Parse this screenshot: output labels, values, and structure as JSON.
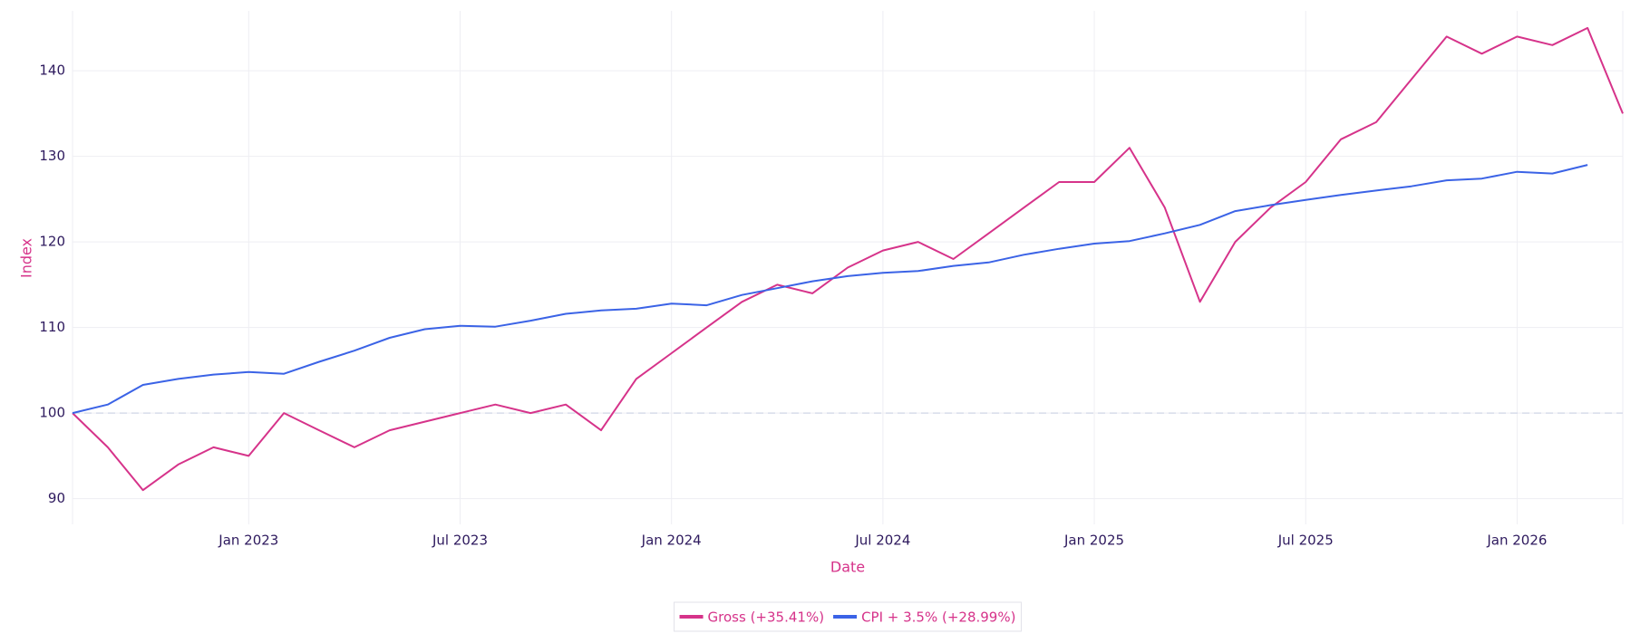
{
  "chart_data": {
    "type": "line",
    "xlabel": "Date",
    "ylabel": "Index",
    "x": [
      "2022-08",
      "2022-09",
      "2022-10",
      "2022-11",
      "2022-12",
      "2023-01",
      "2023-02",
      "2023-03",
      "2023-04",
      "2023-05",
      "2023-06",
      "2023-07",
      "2023-08",
      "2023-09",
      "2023-10",
      "2023-11",
      "2023-12",
      "2024-01",
      "2024-02",
      "2024-03",
      "2024-04",
      "2024-05",
      "2024-06",
      "2024-07",
      "2024-08",
      "2024-09",
      "2024-10",
      "2024-11",
      "2024-12",
      "2025-01",
      "2025-02",
      "2025-03",
      "2025-04",
      "2025-05",
      "2025-06",
      "2025-07",
      "2025-08",
      "2025-09",
      "2025-10",
      "2025-11",
      "2025-12",
      "2026-01",
      "2026-02",
      "2026-03",
      "2026-04"
    ],
    "series": [
      {
        "name": "Gross (+35.41%)",
        "color": "#d6338a",
        "values": [
          100,
          96,
          91,
          94,
          96,
          95,
          100,
          98,
          96,
          98,
          99,
          100,
          101,
          100,
          101,
          98,
          104,
          107,
          110,
          113,
          115,
          114,
          117,
          119,
          120,
          118,
          121,
          124,
          127,
          127,
          131,
          124,
          113,
          120,
          124,
          127,
          132,
          134,
          139,
          144,
          142,
          144,
          143,
          145,
          135
        ]
      },
      {
        "name": "CPI + 3.5% (+28.99%)",
        "color": "#3b63e6",
        "values": [
          100,
          101,
          103.3,
          104,
          104.5,
          104.8,
          104.6,
          106,
          107.3,
          108.8,
          109.8,
          110.2,
          110.1,
          110.8,
          111.6,
          112,
          112.2,
          112.8,
          112.6,
          113.8,
          114.6,
          115.4,
          116,
          116.4,
          116.6,
          117.2,
          117.6,
          118.5,
          119.2,
          119.8,
          120.1,
          121,
          122,
          123.6,
          124.3,
          124.9,
          125.5,
          126,
          126.5,
          127.2,
          127.4,
          128.2,
          128,
          129,
          null
        ]
      }
    ],
    "xlim": [
      "2022-08",
      "2026-04"
    ],
    "xticks": [
      {
        "value": "2023-01",
        "label": "Jan 2023"
      },
      {
        "value": "2023-07",
        "label": "Jul 2023"
      },
      {
        "value": "2024-01",
        "label": "Jan 2024"
      },
      {
        "value": "2024-07",
        "label": "Jul 2024"
      },
      {
        "value": "2025-01",
        "label": "Jan 2025"
      },
      {
        "value": "2025-07",
        "label": "Jul 2025"
      },
      {
        "value": "2026-01",
        "label": "Jan 2026"
      }
    ],
    "ylim": [
      87,
      147
    ],
    "yticks": [
      90,
      100,
      110,
      120,
      130,
      140
    ],
    "baseline": 100,
    "grid": true,
    "legend": "bottom"
  }
}
